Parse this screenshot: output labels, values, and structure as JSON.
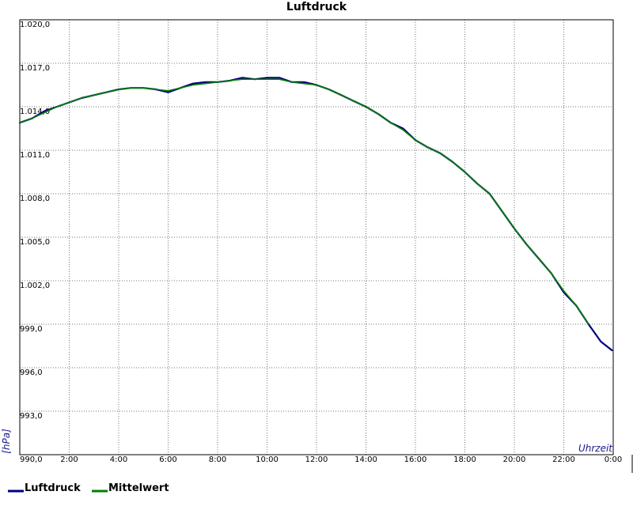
{
  "chart_data": {
    "type": "line",
    "title": "Luftdruck",
    "xlabel": "Uhrzeit",
    "ylabel": "[hPa]",
    "xlim": [
      0,
      24
    ],
    "ylim": [
      990,
      1020
    ],
    "x_ticks": [
      {
        "value": 2,
        "label": "2:00"
      },
      {
        "value": 4,
        "label": "4:00"
      },
      {
        "value": 6,
        "label": "6:00"
      },
      {
        "value": 8,
        "label": "8:00"
      },
      {
        "value": 10,
        "label": "10:00"
      },
      {
        "value": 12,
        "label": "12:00"
      },
      {
        "value": 14,
        "label": "14:00"
      },
      {
        "value": 16,
        "label": "16:00"
      },
      {
        "value": 18,
        "label": "18:00"
      },
      {
        "value": 20,
        "label": "20:00"
      },
      {
        "value": 22,
        "label": "22:00"
      },
      {
        "value": 24,
        "label": "0:00"
      }
    ],
    "y_ticks": [
      {
        "value": 990,
        "label": "990,0"
      },
      {
        "value": 993,
        "label": "993,0"
      },
      {
        "value": 996,
        "label": "996,0"
      },
      {
        "value": 999,
        "label": "999,0"
      },
      {
        "value": 1002,
        "label": "1.002,0"
      },
      {
        "value": 1005,
        "label": "1.005,0"
      },
      {
        "value": 1008,
        "label": "1.008,0"
      },
      {
        "value": 1011,
        "label": "1.011,0"
      },
      {
        "value": 1014,
        "label": "1.014,0"
      },
      {
        "value": 1017,
        "label": "1.017,0"
      },
      {
        "value": 1020,
        "label": "1.020,0"
      }
    ],
    "grid": true,
    "legend_position": "bottom-left",
    "series": [
      {
        "name": "Luftdruck",
        "color": "#000080",
        "x": [
          0,
          0.5,
          1,
          1.5,
          2,
          2.5,
          3,
          3.5,
          4,
          4.5,
          5,
          5.5,
          6,
          6.5,
          7,
          7.5,
          8,
          8.5,
          9,
          9.5,
          10,
          10.5,
          11,
          11.5,
          12,
          12.5,
          13,
          13.5,
          14,
          14.5,
          15,
          15.5,
          16,
          16.5,
          17,
          17.5,
          18,
          18.5,
          19,
          19.5,
          20,
          20.5,
          21,
          21.5,
          22,
          22.5,
          23,
          23.5,
          23.95
        ],
        "y": [
          1012.9,
          1013.2,
          1013.7,
          1014.0,
          1014.3,
          1014.6,
          1014.8,
          1015.0,
          1015.2,
          1015.3,
          1015.3,
          1015.2,
          1015.0,
          1015.3,
          1015.6,
          1015.7,
          1015.7,
          1015.8,
          1016.0,
          1015.9,
          1016.0,
          1016.0,
          1015.7,
          1015.7,
          1015.5,
          1015.2,
          1014.8,
          1014.4,
          1014.0,
          1013.5,
          1012.9,
          1012.5,
          1011.7,
          1011.2,
          1010.8,
          1010.2,
          1009.5,
          1008.7,
          1008.0,
          1006.8,
          1005.6,
          1004.5,
          1003.5,
          1002.5,
          1001.2,
          1000.3,
          999.0,
          997.8,
          997.2
        ]
      },
      {
        "name": "Mittelwert",
        "color": "#008000",
        "x": [
          0,
          0.5,
          1,
          1.5,
          2,
          2.5,
          3,
          3.5,
          4,
          4.5,
          5,
          5.5,
          6,
          6.5,
          7,
          7.5,
          8,
          8.5,
          9,
          9.5,
          10,
          10.5,
          11,
          11.5,
          12,
          12.5,
          13,
          13.5,
          14,
          14.5,
          15,
          15.5,
          16,
          16.5,
          17,
          17.5,
          18,
          18.5,
          19,
          19.5,
          20,
          20.5,
          21,
          21.5,
          22,
          22.5,
          23
        ],
        "y": [
          1012.9,
          1013.2,
          1013.6,
          1014.0,
          1014.3,
          1014.6,
          1014.8,
          1015.0,
          1015.2,
          1015.3,
          1015.3,
          1015.2,
          1015.1,
          1015.3,
          1015.5,
          1015.6,
          1015.7,
          1015.8,
          1015.9,
          1015.9,
          1015.9,
          1015.9,
          1015.7,
          1015.6,
          1015.5,
          1015.2,
          1014.8,
          1014.4,
          1014.0,
          1013.5,
          1012.9,
          1012.4,
          1011.7,
          1011.2,
          1010.8,
          1010.2,
          1009.5,
          1008.7,
          1008.0,
          1006.8,
          1005.6,
          1004.5,
          1003.5,
          1002.5,
          1001.3,
          1000.3,
          999.0
        ]
      }
    ]
  }
}
